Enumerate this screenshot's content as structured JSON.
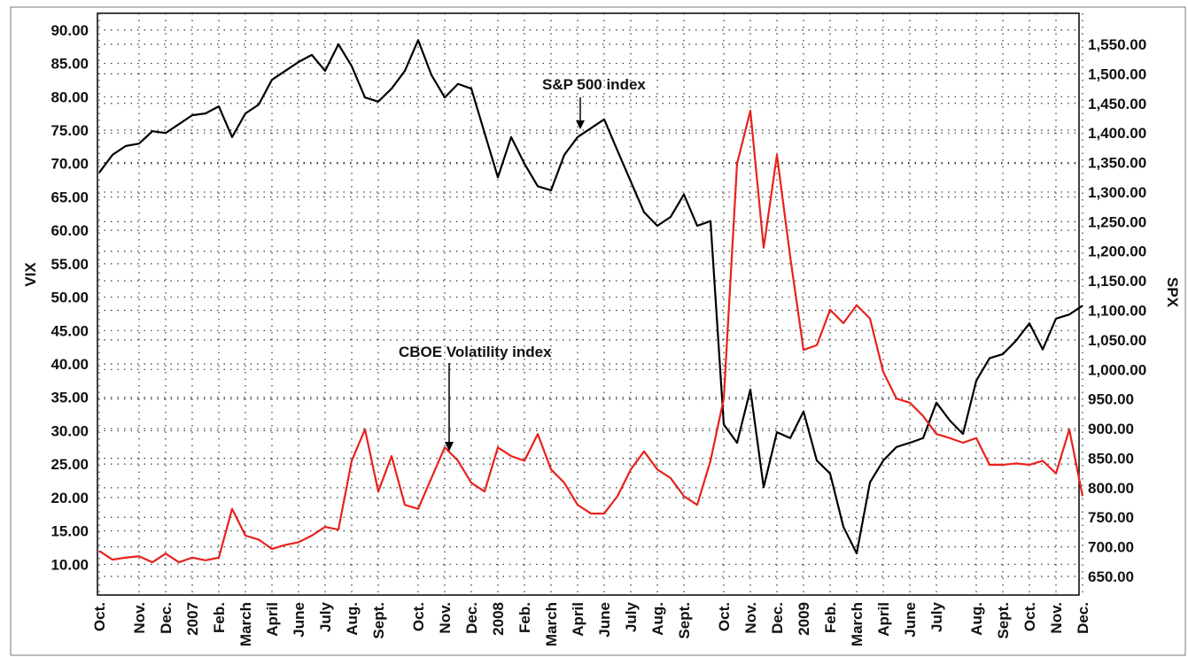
{
  "chart_data": {
    "type": "line",
    "y_label": "VIX",
    "y2_label": "SPX",
    "categories": [
      "Oct.",
      null,
      null,
      "Nov.",
      null,
      "Dec.",
      null,
      "2007",
      null,
      "Feb.",
      null,
      "March",
      null,
      "April",
      null,
      "June",
      null,
      "July",
      null,
      "Aug.",
      null,
      "Sept.",
      null,
      null,
      "Oct.",
      null,
      "Nov.",
      null,
      "Dec.",
      null,
      "2008",
      null,
      "Feb.",
      null,
      "March",
      null,
      "April",
      null,
      "June",
      null,
      "July",
      null,
      "Aug.",
      null,
      "Sept.",
      null,
      null,
      "Oct.",
      null,
      "Nov.",
      null,
      "Dec.",
      null,
      "2009",
      null,
      "Feb.",
      null,
      "March",
      null,
      "April",
      null,
      "June",
      null,
      "July",
      null,
      null,
      "Aug.",
      null,
      "Sept.",
      null,
      "Oct.",
      null,
      "Nov.",
      null,
      "Dec."
    ],
    "series": [
      {
        "name": "S&P 500 index",
        "color": "#000000",
        "axis": "y2",
        "values": [
          1333,
          1363,
          1378,
          1382,
          1403,
          1400,
          1415,
          1430,
          1433,
          1445,
          1393,
          1433,
          1448,
          1490,
          1505,
          1520,
          1532,
          1505,
          1550,
          1513,
          1460,
          1453,
          1475,
          1505,
          1557,
          1498,
          1460,
          1483,
          1475,
          1400,
          1325,
          1393,
          1348,
          1310,
          1303,
          1363,
          1393,
          1408,
          1423,
          1370,
          1318,
          1266,
          1243,
          1258,
          1296,
          1243,
          1251,
          907,
          876,
          966,
          801,
          894,
          884,
          929,
          846,
          824,
          734,
          689,
          809,
          846,
          869,
          876,
          884,
          944,
          914,
          891,
          981,
          1019,
          1026,
          1049,
          1078,
          1034,
          1086,
          1093,
          1108
        ]
      },
      {
        "name": "CBOE Volatility index",
        "color": "#e8211c",
        "values": [
          12.0,
          10.7,
          11.0,
          11.2,
          10.3,
          11.6,
          10.3,
          11.0,
          10.6,
          11.0,
          18.3,
          14.3,
          13.7,
          12.3,
          12.9,
          13.3,
          14.3,
          15.6,
          15.2,
          25.5,
          30.2,
          20.9,
          26.2,
          18.9,
          18.3,
          22.9,
          27.5,
          25.5,
          22.2,
          20.9,
          27.5,
          26.2,
          25.5,
          29.5,
          24.2,
          22.2,
          18.9,
          17.6,
          17.6,
          20.2,
          24.2,
          26.9,
          24.2,
          22.9,
          20.2,
          18.9,
          25.5,
          34.8,
          70.0,
          77.9,
          57.4,
          71.3,
          56.0,
          42.1,
          42.8,
          48.1,
          46.1,
          48.8,
          46.8,
          38.8,
          34.8,
          34.2,
          32.2,
          29.5,
          28.9,
          28.2,
          28.9,
          24.9,
          24.9,
          25.1,
          24.9,
          25.5,
          23.6,
          30.2,
          20.2
        ]
      }
    ],
    "ylim": [
      5.4,
      92.5
    ],
    "yticks": [
      {
        "value": 10,
        "label": "10.00"
      },
      {
        "value": 15,
        "label": "15.00"
      },
      {
        "value": 20,
        "label": "20.00"
      },
      {
        "value": 25,
        "label": "25.00"
      },
      {
        "value": 30,
        "label": "30.00"
      },
      {
        "value": 35,
        "label": "35.00"
      },
      {
        "value": 40,
        "label": "40.00"
      },
      {
        "value": 45,
        "label": "45.00"
      },
      {
        "value": 50,
        "label": "50.00"
      },
      {
        "value": 55,
        "label": "55.00"
      },
      {
        "value": 60,
        "label": "60.00"
      },
      {
        "value": 65,
        "label": "65.00"
      },
      {
        "value": 70,
        "label": "70.00"
      },
      {
        "value": 75,
        "label": "75.00"
      },
      {
        "value": 80,
        "label": "80.00"
      },
      {
        "value": 85,
        "label": "85.00"
      },
      {
        "value": 90,
        "label": "90.00"
      }
    ],
    "y2lim": [
      618.6,
      1602.4
    ],
    "y2ticks": [
      {
        "value": 650,
        "label": "650.00"
      },
      {
        "value": 700,
        "label": "700.00"
      },
      {
        "value": 750,
        "label": "750.00"
      },
      {
        "value": 800,
        "label": "800.00"
      },
      {
        "value": 850,
        "label": "850.00"
      },
      {
        "value": 900,
        "label": "900.00"
      },
      {
        "value": 950,
        "label": "950.00"
      },
      {
        "value": 1000,
        "label": "1,000.00"
      },
      {
        "value": 1050,
        "label": "1,050.00"
      },
      {
        "value": 1100,
        "label": "1,100.00"
      },
      {
        "value": 1150,
        "label": "1,150.00"
      },
      {
        "value": 1200,
        "label": "1,200.00"
      },
      {
        "value": 1250,
        "label": "1,250.00"
      },
      {
        "value": 1300,
        "label": "1,300.00"
      },
      {
        "value": 1350,
        "label": "1,350.00"
      },
      {
        "value": 1400,
        "label": "1,400.00"
      },
      {
        "value": 1450,
        "label": "1,450.00"
      },
      {
        "value": 1500,
        "label": "1,500.00"
      },
      {
        "value": 1550,
        "label": "1,550.00"
      }
    ],
    "grid": true
  }
}
